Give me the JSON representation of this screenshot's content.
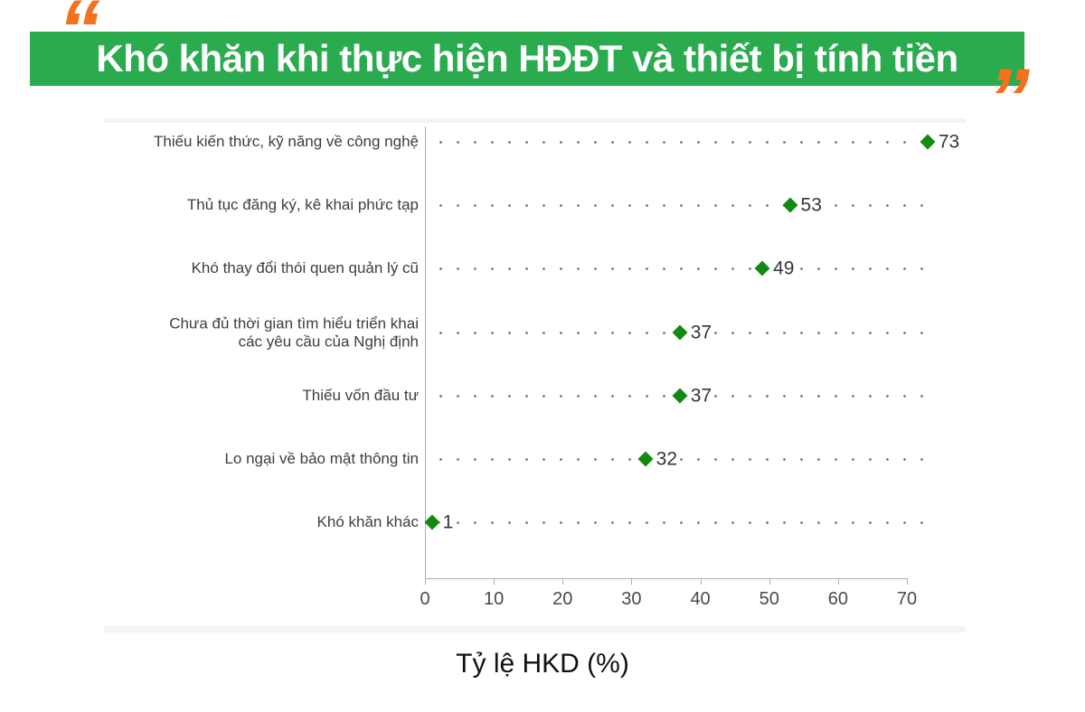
{
  "title": "Khó khăn khi thực hiện HĐĐT và thiết bị tính tiền",
  "decor": {
    "open_quote": "“",
    "close_quote": "”"
  },
  "colors": {
    "banner_green": "#2aab4e",
    "quote_orange": "#f4711f",
    "marker_green": "#12890f",
    "dot_gray": "#6e6e6e",
    "axis_gray": "#aeaeae"
  },
  "chart_data": {
    "type": "scatter",
    "variant": "horizontal-dot-plot",
    "title": "Khó khăn khi thực hiện HĐĐT và thiết bị tính tiền",
    "categories": [
      "Thiếu kiến thức, kỹ năng về công nghệ",
      "Thủ tục đăng ký, kê khai phức tạp",
      "Khó thay đổi thói quen quản lý cũ",
      "Chưa đủ thời gian tìm hiểu triển khai\ncác yêu cầu của Nghị định",
      "Thiếu vốn đầu tư",
      "Lo ngại về bảo mật thông tin",
      "Khó khăn khác"
    ],
    "values": [
      73,
      53,
      49,
      37,
      37,
      32,
      1
    ],
    "value_labels": [
      "73",
      "53",
      "49",
      "37",
      "37",
      "32",
      "1"
    ],
    "xlabel": "Tỷ lệ HKD (%)",
    "xlim": [
      0,
      70
    ],
    "xticks": [
      "0",
      "10",
      "20",
      "30",
      "40",
      "50",
      "60",
      "70"
    ],
    "marker": "diamond",
    "grid": "dotted-horizontal-guides",
    "legend": "none"
  }
}
